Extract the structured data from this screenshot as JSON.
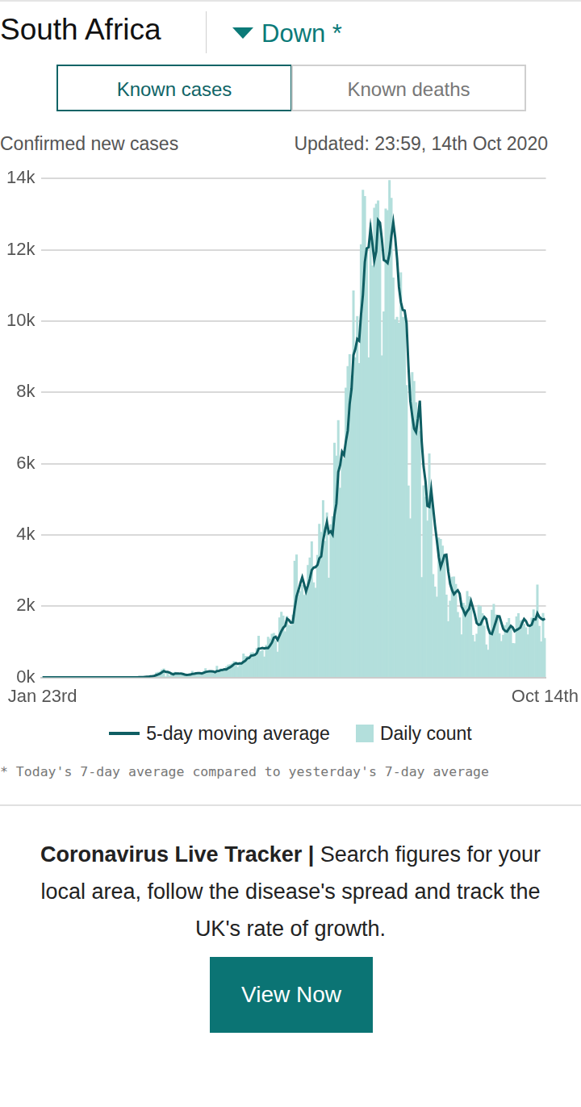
{
  "header": {
    "title": "South Africa",
    "trend": "Down *",
    "tabs": [
      "Known cases",
      "Known deaths"
    ],
    "active_tab": "Known cases"
  },
  "chart_data": {
    "type": "bar",
    "subtitle": "Confirmed new cases",
    "updated": "Updated: 23:59, 14th Oct 2020",
    "categories": [
      "Jan 23rd",
      null,
      null,
      null,
      null,
      null,
      null,
      null,
      null,
      null,
      null,
      null,
      null,
      null,
      null,
      null,
      null,
      null,
      null,
      null,
      null,
      null,
      null,
      null,
      null,
      null,
      null,
      null,
      null,
      null,
      null,
      null,
      null,
      null,
      null,
      null,
      null,
      null,
      null,
      null,
      null,
      null,
      null,
      null,
      null,
      null,
      null,
      null,
      null,
      null,
      null,
      null,
      null,
      null,
      null,
      null,
      null,
      null,
      null,
      null,
      null,
      null,
      null,
      null,
      null,
      null,
      null,
      null,
      null,
      null,
      null,
      null,
      null,
      null,
      null,
      null,
      null,
      null,
      null,
      null,
      null,
      null,
      null,
      null,
      null,
      null,
      null,
      null,
      null,
      null,
      null,
      null,
      null,
      null,
      null,
      null,
      null,
      null,
      null,
      null,
      null,
      null,
      null,
      null,
      null,
      null,
      null,
      null,
      null,
      null,
      null,
      null,
      null,
      null,
      null,
      null,
      null,
      null,
      null,
      null,
      null,
      null,
      null,
      null,
      null,
      null,
      null,
      null,
      null,
      null,
      null,
      null,
      null,
      null,
      null,
      null,
      null,
      null,
      null,
      null,
      null,
      null,
      null,
      null,
      null,
      null,
      null,
      null,
      null,
      null,
      null,
      null,
      null,
      null,
      null,
      null,
      null,
      null,
      null,
      null,
      null,
      null,
      null,
      null,
      null,
      null,
      null,
      null,
      null,
      null,
      null,
      null,
      null,
      null,
      null,
      null,
      null,
      null,
      null,
      null,
      null,
      null,
      null,
      null,
      null,
      null,
      null,
      null,
      null,
      null,
      null,
      null,
      null,
      null,
      null,
      null,
      null,
      null,
      null,
      null,
      null,
      null,
      null,
      null,
      null,
      null,
      null,
      null,
      null,
      null,
      null,
      null,
      null,
      null,
      null,
      null,
      null,
      null,
      null,
      null,
      null,
      null,
      null,
      null,
      null,
      null,
      null,
      null,
      null,
      null,
      null,
      null,
      null,
      null,
      null,
      null,
      null,
      null,
      null,
      null,
      null,
      null,
      null,
      null,
      null,
      null,
      null,
      null,
      null,
      null,
      null,
      null,
      null,
      null,
      null,
      null,
      null,
      null,
      null,
      null,
      null,
      null,
      null,
      null,
      null,
      "Oct 14th"
    ],
    "series": [
      {
        "name": "5-day moving average",
        "type": "line",
        "color": "#0f5e63",
        "values": [
          0,
          0,
          0,
          0,
          0,
          0,
          0,
          0,
          0,
          0,
          0,
          0,
          0,
          0,
          0,
          0,
          0,
          0,
          0,
          0,
          0,
          0,
          0,
          0,
          0,
          0,
          0,
          0,
          0,
          0,
          0,
          0,
          0,
          0,
          0,
          0,
          0,
          0,
          0,
          0,
          0,
          0,
          0,
          0,
          0,
          1,
          1,
          1,
          2,
          3,
          4,
          6,
          9,
          10,
          14,
          18,
          22,
          30,
          36,
          45,
          65,
          84,
          108,
          144,
          178,
          156,
          156,
          134,
          107,
          86,
          112,
          108,
          107,
          111,
          99,
          82,
          73,
          74,
          80,
          99,
          104,
          117,
          119,
          120,
          112,
          131,
          153,
          163,
          172,
          174,
          168,
          146,
          180,
          185,
          203,
          212,
          226,
          224,
          261,
          286,
          324,
          371,
          398,
          383,
          395,
          393,
          436,
          468,
          531,
          548,
          611,
          618,
          632,
          677,
          807,
          814,
          828,
          811,
          828,
          823,
          893,
          977,
          1115,
          1141,
          1056,
          1175,
          1299,
          1396,
          1447,
          1648,
          1607,
          1531,
          1540,
          1932,
          2277,
          2446,
          2639,
          2807,
          2616,
          2414,
          2581,
          2768,
          3011,
          3082,
          3097,
          3153,
          3342,
          3396,
          3842,
          4120,
          4358,
          4056,
          4098,
          4008,
          4561,
          4878,
          5762,
          5965,
          6330,
          6241,
          6622,
          6926,
          7676,
          8101,
          9046,
          9215,
          9496,
          9446,
          10183,
          10742,
          11653,
          12037,
          12070,
          12601,
          12167,
          11702,
          11948,
          12828,
          12757,
          12291,
          11709,
          11682,
          11628,
          11898,
          12381,
          12772,
          12350,
          11751,
          10951,
          10534,
          10313,
          10293,
          9943,
          8739,
          7746,
          7339,
          6979,
          6882,
          7276,
          7766,
          6616,
          5911,
          5501,
          4810,
          4784,
          5267,
          4769,
          4265,
          3838,
          3382,
          3097,
          3257,
          3429,
          3440,
          2970,
          2623,
          2448,
          2334,
          2398,
          2447,
          2353,
          1993,
          1882,
          1756,
          1855,
          1927,
          2143,
          1961,
          1765,
          1525,
          1476,
          1486,
          1608,
          1696,
          1637,
          1386,
          1238,
          1218,
          1381,
          1548,
          1720,
          1713,
          1537,
          1363,
          1303,
          1286,
          1371,
          1446,
          1400,
          1298,
          1331,
          1359,
          1397,
          1531,
          1641,
          1582,
          1461,
          1447,
          1480,
          1630,
          1628,
          1800,
          1700,
          1650,
          1620,
          1650
        ]
      },
      {
        "name": "Daily count",
        "type": "bar",
        "color": "#b3dfdc",
        "values": [
          0,
          0,
          0,
          0,
          0,
          0,
          0,
          0,
          0,
          0,
          0,
          0,
          0,
          0,
          0,
          0,
          0,
          0,
          0,
          0,
          0,
          0,
          0,
          0,
          0,
          0,
          0,
          0,
          0,
          0,
          0,
          0,
          0,
          0,
          0,
          0,
          0,
          0,
          0,
          0,
          0,
          0,
          1,
          0,
          1,
          1,
          4,
          0,
          6,
          4,
          7,
          14,
          13,
          11,
          23,
          31,
          34,
          52,
          38,
          72,
          128,
          148,
          155,
          218,
          243,
          17,
          146,
          46,
          82,
          137,
          150,
          123,
          79,
          66,
          79,
          63,
          78,
          84,
          94,
          178,
          85,
          143,
          93,
          99,
          142,
          178,
          251,
          146,
          143,
          150,
          148,
          142,
          318,
          166,
          243,
          193,
          212,
          304,
          354,
          365,
          385,
          447,
          437,
          281,
          424,
          376,
          663,
          595,
          595,
          511,
          693,
          698,
          665,
          817,
          1160,
          731,
          767,
          578,
          905,
          1134,
          1079,
          1218,
          1240,
          1032,
          712,
          1673,
          1837,
          1727,
          1288,
          1716,
          1467,
          1455,
          1756,
          3267,
          3442,
          2312,
          2420,
          2594,
          2312,
          2430,
          3147,
          3359,
          3809,
          2663,
          2506,
          3430,
          4302,
          4078,
          4966,
          3825,
          4621,
          2788,
          4288,
          4518,
          6579,
          6215,
          7210,
          5314,
          6334,
          6130,
          8124,
          8728,
          9063,
          8460,
          10853,
          8971,
          10134,
          8810,
          12148,
          13674,
          13497,
          12058,
          8971,
          12757,
          11554,
          13172,
          13285,
          13373,
          12601,
          9025,
          10259,
          13150,
          13104,
          13944,
          13449,
          11211,
          10043,
          10107,
          9945,
          11362,
          10107,
          10107,
          8195,
          5377,
          4456,
          8559,
          8307,
          7712,
          7346,
          6904,
          2810,
          5385,
          5060,
          4391,
          6275,
          5226,
          2891,
          2541,
          2258,
          3916,
          3880,
          3692,
          3398,
          2313,
          1567,
          2143,
          2819,
          2826,
          2617,
          1829,
          1676,
          1198,
          2088,
          1991,
          2420,
          2268,
          1950,
          1185,
          1002,
          1218,
          2027,
          2000,
          1792,
          1444,
          920,
          772,
          1263,
          1893,
          2055,
          1758,
          1629,
          1228,
          1013,
          1187,
          1459,
          1542,
          1656,
          1387,
          956,
          950,
          1705,
          1796,
          1589,
          1614,
          1500,
          1400,
          1200,
          1464,
          1672,
          1900,
          1697,
          2600,
          1440,
          1000,
          1800,
          1100
        ]
      }
    ],
    "ylim": [
      0,
      14000
    ],
    "yticks": [
      {
        "value": 0,
        "label": "0k"
      },
      {
        "value": 2000,
        "label": "2k"
      },
      {
        "value": 4000,
        "label": "4k"
      },
      {
        "value": 6000,
        "label": "6k"
      },
      {
        "value": 8000,
        "label": "8k"
      },
      {
        "value": 10000,
        "label": "10k"
      },
      {
        "value": 12000,
        "label": "12k"
      },
      {
        "value": 14000,
        "label": "14k"
      }
    ],
    "grid": true,
    "legend": "bottom",
    "footnote": "* Today's 7-day average compared to yesterday's 7-day average"
  },
  "promo": {
    "title": "Coronavirus Live Tracker |",
    "text": "Search figures for your local area, follow the disease's spread and track the UK's rate of growth.",
    "button": "View Now"
  }
}
